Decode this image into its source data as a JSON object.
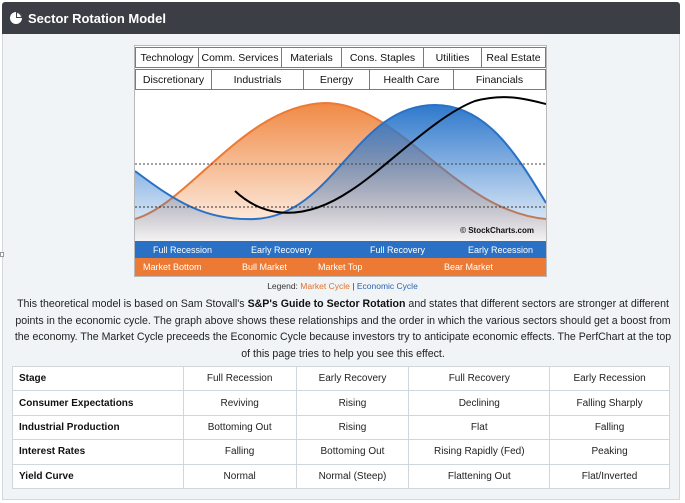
{
  "header": {
    "title": "Sector Rotation Model",
    "icon": "pie-chart-icon"
  },
  "sectors": {
    "row1": [
      "Technology",
      "Comm. Services",
      "Materials",
      "Cons. Staples",
      "Utilities",
      "Real Estate"
    ],
    "row2": [
      "Discretionary",
      "Industrials",
      "Energy",
      "Health Care",
      "Financials"
    ]
  },
  "economic_cycle": [
    "Full Recession",
    "Early Recovery",
    "Full Recovery",
    "Early Recession"
  ],
  "market_cycle": [
    "Market Bottom",
    "Bull Market",
    "Market Top",
    "Bear Market"
  ],
  "watermark": "© StockCharts.com",
  "legend": {
    "prefix": "Legend:",
    "market": "Market Cycle",
    "sep": "|",
    "economic": "Economic Cycle"
  },
  "description": {
    "part1": "This theoretical model is based on Sam Stovall's ",
    "bold": "S&P's Guide to Sector Rotation",
    "part2": " and states that different sectors are stronger at different points in the economic cycle. The graph above shows these relationships and the order in which the various sectors should get a boost from the economy. The Market Cycle preceeds the Economic Cycle because investors try to anticipate economic effects. The PerfChart at the top of this page tries to help you see this effect."
  },
  "table": {
    "rows": [
      {
        "label": "Stage",
        "cells": [
          "Full Recession",
          "Early Recovery",
          "Full Recovery",
          "Early Recession"
        ]
      },
      {
        "label": "Consumer Expectations",
        "cells": [
          "Reviving",
          "Rising",
          "Declining",
          "Falling Sharply"
        ]
      },
      {
        "label": "Industrial Production",
        "cells": [
          "Bottoming Out",
          "Rising",
          "Flat",
          "Falling"
        ]
      },
      {
        "label": "Interest Rates",
        "cells": [
          "Falling",
          "Bottoming Out",
          "Rising Rapidly (Fed)",
          "Peaking"
        ]
      },
      {
        "label": "Yield Curve",
        "cells": [
          "Normal",
          "Normal (Steep)",
          "Flattening Out",
          "Flat/Inverted"
        ]
      }
    ]
  },
  "colors": {
    "market_cycle": "#ec7a34",
    "economic_cycle": "#2a71c6",
    "header_bg": "#3b3e44"
  }
}
